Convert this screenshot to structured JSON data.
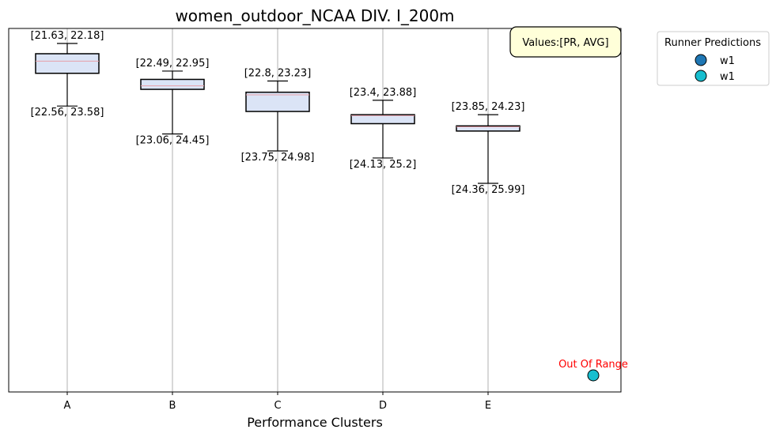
{
  "chart_data": {
    "type": "box",
    "title": "women_outdoor_NCAA DIV. I_200m",
    "xlabel": "Performance Clusters",
    "ylabel": "",
    "y_axis_inverted": true,
    "y_ticks_shown": false,
    "grid": "vertical",
    "categories": [
      "A",
      "B",
      "C",
      "D",
      "E"
    ],
    "boxes": [
      {
        "category": "A",
        "whisker_low": 21.63,
        "q1": 21.95,
        "median": 22.18,
        "q3": 22.56,
        "whisker_high": 23.58,
        "top_label": "[21.63, 22.18]",
        "bottom_label": "[22.56, 23.58]"
      },
      {
        "category": "B",
        "whisker_low": 22.49,
        "q1": 22.75,
        "median": 22.95,
        "q3": 23.06,
        "whisker_high": 24.45,
        "top_label": "[22.49, 22.95]",
        "bottom_label": "[23.06, 24.45]"
      },
      {
        "category": "C",
        "whisker_low": 22.8,
        "q1": 23.15,
        "median": 23.23,
        "q3": 23.75,
        "whisker_high": 24.98,
        "top_label": "[22.8, 23.23]",
        "bottom_label": "[23.75, 24.98]"
      },
      {
        "category": "D",
        "whisker_low": 23.4,
        "q1": 23.85,
        "median": 23.88,
        "q3": 24.13,
        "whisker_high": 25.2,
        "top_label": "[23.4, 23.88]",
        "bottom_label": "[24.13, 25.2]"
      },
      {
        "category": "E",
        "whisker_low": 23.85,
        "q1": 24.2,
        "median": 24.23,
        "q3": 24.36,
        "whisker_high": 25.99,
        "top_label": "[23.85, 24.23]",
        "bottom_label": "[24.36, 25.99]"
      }
    ],
    "annotation_box": "Values:[PR, AVG]",
    "legend": {
      "title": "Runner Predictions",
      "placement": "outside-top-right",
      "entries": [
        {
          "label": "w1",
          "color": "#1f77b4"
        },
        {
          "label": "w1",
          "color": "#17becf"
        }
      ]
    },
    "points": [
      {
        "label": "Out Of Range",
        "color": "#17becf",
        "x_position": "right of E"
      }
    ],
    "colors": {
      "box_fill": "#dbe4f6",
      "median_line": "#e8a0a8",
      "annotation_bg": "#ffffd9",
      "out_of_range_text": "#ff0000"
    }
  }
}
